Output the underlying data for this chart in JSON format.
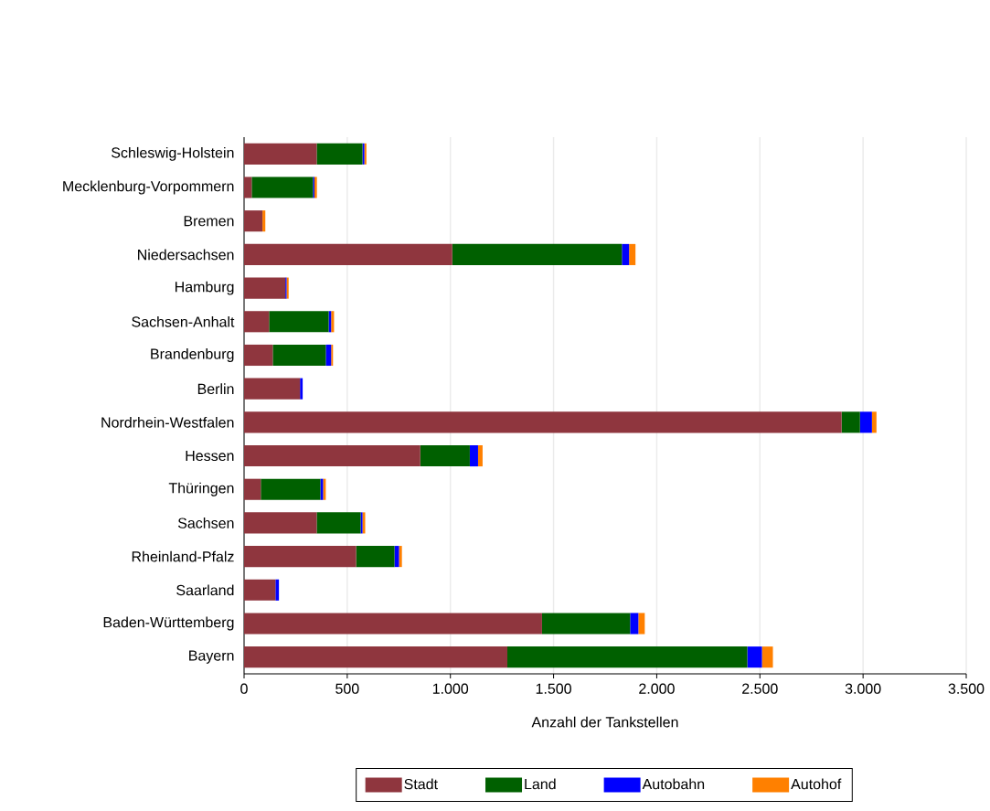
{
  "chart_data": {
    "type": "bar",
    "orientation": "horizontal",
    "stacked": true,
    "xlabel": "Anzahl der Tankstellen",
    "categories": [
      "Schleswig-Holstein",
      "Mecklenburg-Vorpommern",
      "Bremen",
      "Niedersachsen",
      "Hamburg",
      "Sachsen-Anhalt",
      "Brandenburg",
      "Berlin",
      "Nordrhein-Westfalen",
      "Hessen",
      "Thüringen",
      "Sachsen",
      "Rheinland-Pfalz",
      "Saarland",
      "Baden-Württemberg",
      "Bayern"
    ],
    "series": [
      {
        "name": "Stadt",
        "color": "#8f363e",
        "values": [
          352,
          37,
          89,
          1009,
          200,
          121,
          139,
          271,
          2896,
          854,
          81,
          352,
          543,
          152,
          1444,
          1276
        ]
      },
      {
        "name": "Land",
        "color": "#006000",
        "values": [
          222,
          297,
          0,
          822,
          0,
          289,
          257,
          0,
          89,
          240,
          289,
          213,
          186,
          0,
          427,
          1163
        ]
      },
      {
        "name": "Autobahn",
        "color": "#0000ff",
        "values": [
          9,
          7,
          0,
          35,
          6,
          12,
          26,
          13,
          58,
          40,
          13,
          9,
          22,
          17,
          40,
          71
        ]
      },
      {
        "name": "Autohof",
        "color": "#ff8000",
        "values": [
          10,
          12,
          14,
          31,
          10,
          14,
          9,
          0,
          22,
          22,
          13,
          13,
          14,
          0,
          31,
          53
        ]
      }
    ],
    "xlim": [
      0,
      3500
    ],
    "xticks": [
      0,
      500,
      {
        "value": 1000,
        "label": "1.000"
      },
      {
        "value": 1500,
        "label": "1.500"
      },
      {
        "value": 2000,
        "label": "2.000"
      },
      {
        "value": 2500,
        "label": "2.500"
      },
      {
        "value": 3000,
        "label": "3.000"
      },
      {
        "value": 3500,
        "label": "3.500"
      }
    ],
    "grid": "x",
    "legend": "bottom"
  }
}
